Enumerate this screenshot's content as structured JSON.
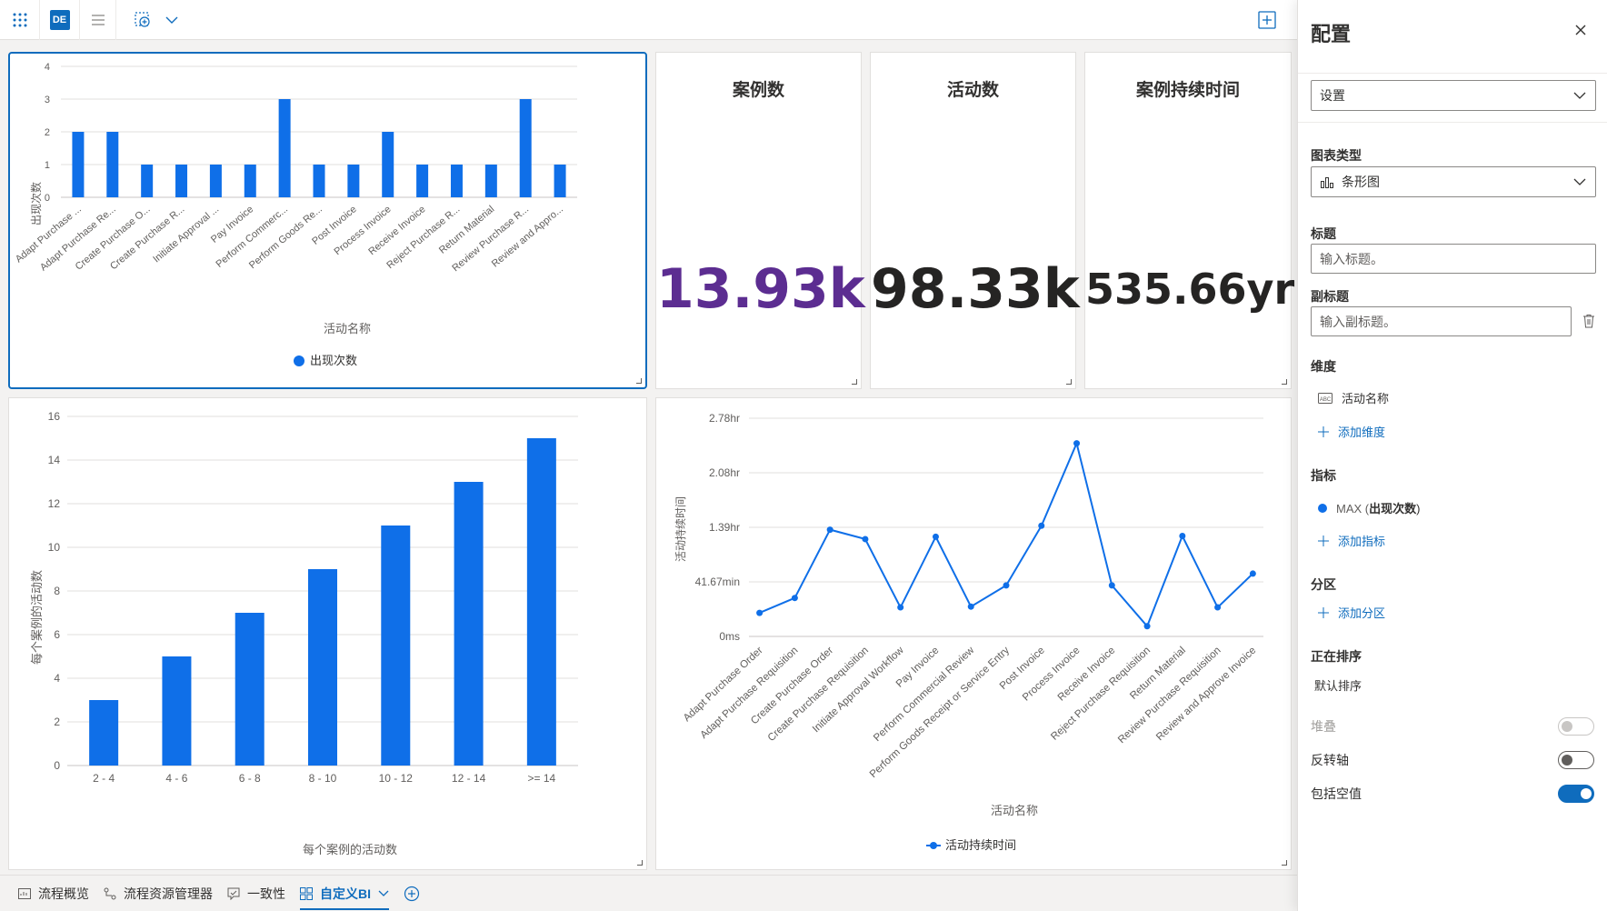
{
  "toolbar": {
    "grid_icon": "app-grid-icon",
    "avatar_initials": "DE",
    "menu_icon": "hamburger-icon",
    "view_icon": "add-view-icon",
    "chevron_icon": "chevron-down-icon",
    "add_icon": "add-square-icon"
  },
  "kpis": [
    {
      "title": "案例数",
      "value": "13.93k",
      "color": "#5c2d91"
    },
    {
      "title": "活动数",
      "value": "98.33k",
      "color": "#252423"
    },
    {
      "title": "案例持续时间",
      "value": "535.66yr",
      "color": "#252423"
    }
  ],
  "colors": {
    "accent": "#0f6cbd",
    "bar": "#0f6fe8"
  },
  "charts": {
    "bar1": {
      "xlabel": "活动名称",
      "ylabel": "出现次数",
      "legend": "出现次数"
    },
    "bar2": {
      "xlabel": "每个案例的活动数",
      "ylabel": "每个案例的活动数"
    },
    "line": {
      "xlabel": "活动名称",
      "ylabel": "活动持续时间",
      "legend": "活动持续时间"
    }
  },
  "chart_data": [
    {
      "type": "bar",
      "title": "",
      "xlabel": "活动名称",
      "ylabel": "出现次数",
      "ylim": [
        0,
        4
      ],
      "yticks": [
        "0",
        "1",
        "2",
        "3",
        "4"
      ],
      "categories": [
        "Adapt Purchase ...",
        "Adapt Purchase Re...",
        "Create Purchase O...",
        "Create Purchase R...",
        "Initiate Approval ...",
        "Pay Invoice",
        "Perform Commerc...",
        "Perform Goods Re...",
        "Post Invoice",
        "Process Invoice",
        "Receive Invoice",
        "Reject Purchase R...",
        "Return Material",
        "Review Purchase R...",
        "Review and Appro..."
      ],
      "series": [
        {
          "name": "出现次数",
          "values": [
            2,
            2,
            1,
            1,
            1,
            1,
            3,
            1,
            1,
            2,
            1,
            1,
            1,
            3,
            1
          ]
        }
      ],
      "legend": "bottom",
      "grid": true
    },
    {
      "type": "bar",
      "title": "",
      "xlabel": "每个案例的活动数",
      "ylabel": "每个案例的活动数",
      "ylim": [
        0,
        16
      ],
      "yticks": [
        "0",
        "2",
        "4",
        "6",
        "8",
        "10",
        "12",
        "14",
        "16"
      ],
      "categories": [
        "2 - 4",
        "4 - 6",
        "6 - 8",
        "8 - 10",
        "10 - 12",
        "12 - 14",
        ">= 14"
      ],
      "values": [
        3,
        5,
        7,
        9,
        11,
        13,
        15
      ],
      "grid": true
    },
    {
      "type": "line",
      "title": "",
      "xlabel": "活动名称",
      "ylabel": "活动持续时间",
      "yticks": [
        "0ms",
        "41.67min",
        "1.39hr",
        "2.08hr",
        "2.78hr"
      ],
      "ylim_hr": [
        0,
        2.78
      ],
      "categories": [
        "Adapt Purchase Order",
        "Adapt Purchase Requisition",
        "Create Purchase Order",
        "Create Purchase Requisition",
        "Initiate Approval Workflow",
        "Pay Invoice",
        "Perform Commercial Review",
        "Perform Goods Receipt or Service Entry",
        "Post Invoice",
        "Process Invoice",
        "Receive Invoice",
        "Reject Purchase Requisition",
        "Return Material",
        "Review Purchase Requisition",
        "Review and Approve Invoice"
      ],
      "series": [
        {
          "name": "活动持续时间",
          "values": [
            0.3,
            0.49,
            1.36,
            1.24,
            0.37,
            1.27,
            0.38,
            0.65,
            1.41,
            2.46,
            0.65,
            0.13,
            1.28,
            0.37,
            0.8
          ]
        }
      ],
      "legend": "bottom",
      "grid": true
    }
  ],
  "tabs": [
    {
      "label": "流程概览",
      "icon": "overview-icon"
    },
    {
      "label": "流程资源管理器",
      "icon": "process-explorer-icon"
    },
    {
      "label": "一致性",
      "icon": "conformance-icon"
    },
    {
      "label": "自定义BI",
      "icon": "custom-bi-icon",
      "active": true
    }
  ],
  "panel": {
    "title": "配置",
    "section_select": "设置",
    "chart_type_label": "图表类型",
    "chart_type_value": "条形图",
    "title_label": "标题",
    "title_placeholder": "输入标题。",
    "subtitle_label": "副标题",
    "subtitle_placeholder": "输入副标题。",
    "dimension_label": "维度",
    "dimension_item": "活动名称",
    "add_dimension": "添加维度",
    "metric_label": "指标",
    "metric_item_prefix": "MAX (",
    "metric_item_name": "出现次数",
    "metric_item_suffix": ")",
    "add_metric": "添加指标",
    "partition_label": "分区",
    "add_partition": "添加分区",
    "sorting_label": "正在排序",
    "sorting_value": "默认排序",
    "stack_label": "堆叠",
    "stack_on": false,
    "reverse_axis_label": "反转轴",
    "reverse_axis_on": false,
    "include_nulls_label": "包括空值",
    "include_nulls_on": true
  }
}
